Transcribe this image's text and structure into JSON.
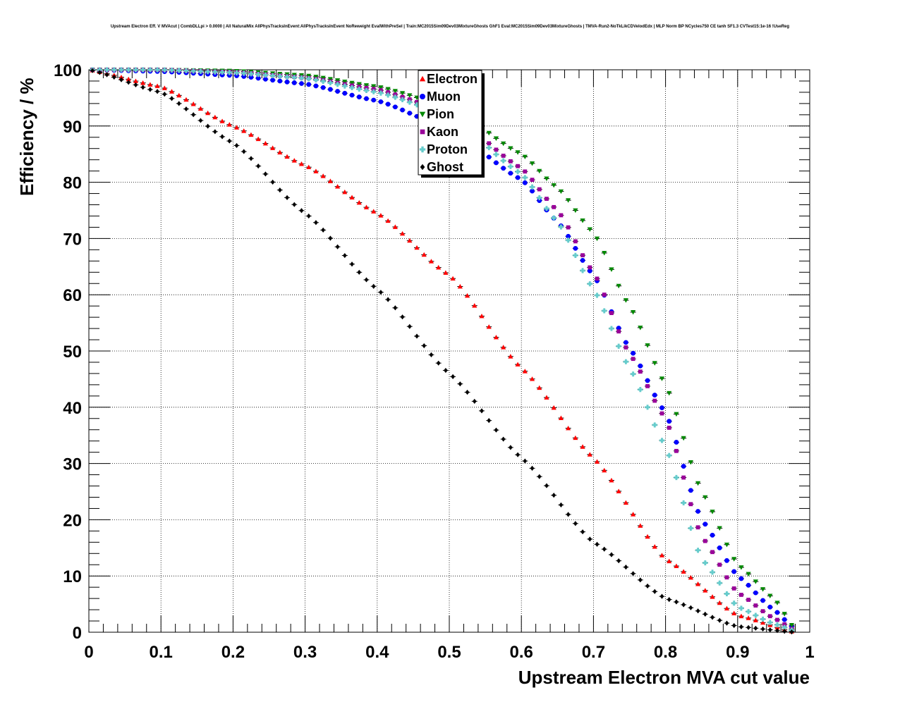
{
  "title": "Upstream Electron Eff. V MVAcut | CombDLLpi > 0.0000 | All NaturalMix AllPhysTracksInEvent:AllPhysTracksInEvent NoReweight EvalWithPreSel | Train:MC2015Sim09Dev03MixtureGhosts GhF1 Eval:MC2015Sim09Dev03MixtureGhosts | TMVA-Run2-NoTkLikCDVelodEdx | MLP Norm BP NCycles750 CE tanh SF1.3 CVTest15:1e-16 !UseReg",
  "chart_data": {
    "type": "scatter",
    "title": "Upstream Electron Eff. V MVAcut | CombDLLpi > 0.0000 | All NaturalMix AllPhysTracksInEvent:AllPhysTracksInEvent NoReweight EvalWithPreSel | Train:MC2015Sim09Dev03MixtureGhosts GhF1 Eval:MC2015Sim09Dev03MixtureGhosts | TMVA-Run2-NoTkLikCDVelodEdx | MLP Norm BP NCycles750 CE tanh SF1.3 CVTest15:1e-16 !UseReg",
    "xlabel": "Upstream Electron MVA cut value",
    "ylabel": "Efficiency / %",
    "xlim": [
      0,
      1
    ],
    "ylim": [
      0,
      100
    ],
    "x_step": 0.01,
    "x_ticks": [
      "0",
      "0.1",
      "0.2",
      "0.3",
      "0.4",
      "0.5",
      "0.6",
      "0.7",
      "0.8",
      "0.9",
      "1"
    ],
    "y_ticks": [
      "0",
      "10",
      "20",
      "30",
      "40",
      "50",
      "60",
      "70",
      "80",
      "90",
      "100"
    ],
    "grid": true,
    "legend_position": "top-center",
    "series": [
      {
        "name": "Electron",
        "color": "#ff0000",
        "marker": "triangle-up",
        "x_points": [
          0,
          0.1,
          0.2,
          0.3,
          0.4,
          0.5,
          0.6,
          0.7,
          0.8,
          0.9,
          0.98
        ],
        "y_points": [
          100,
          97,
          90,
          83,
          74.5,
          63.5,
          47,
          31,
          13,
          3,
          0
        ]
      },
      {
        "name": "Muon",
        "color": "#0000ff",
        "marker": "circle",
        "x_points": [
          0,
          0.1,
          0.2,
          0.3,
          0.4,
          0.5,
          0.6,
          0.65,
          0.7,
          0.75,
          0.8,
          0.85,
          0.9,
          0.95,
          0.98
        ],
        "y_points": [
          100,
          99.7,
          99,
          97.5,
          94.5,
          89.5,
          80.5,
          73,
          63.5,
          50.5,
          39,
          20,
          10,
          4,
          0.5
        ]
      },
      {
        "name": "Pion",
        "color": "#008800",
        "marker": "triangle-down",
        "x_points": [
          0,
          0.1,
          0.2,
          0.3,
          0.4,
          0.5,
          0.6,
          0.65,
          0.7,
          0.75,
          0.8,
          0.85,
          0.9,
          0.95,
          0.98
        ],
        "y_points": [
          100,
          100,
          99.8,
          99,
          97,
          93.5,
          85,
          79,
          71,
          58,
          44,
          25,
          12,
          6,
          0.5
        ]
      },
      {
        "name": "Kaon",
        "color": "#990099",
        "marker": "square",
        "x_points": [
          0,
          0.1,
          0.2,
          0.3,
          0.4,
          0.5,
          0.6,
          0.65,
          0.7,
          0.75,
          0.8,
          0.85,
          0.9,
          0.95,
          0.98
        ],
        "y_points": [
          100,
          100,
          99.6,
          98.6,
          96.5,
          92.5,
          82.5,
          75,
          64,
          49.5,
          38,
          17,
          7,
          2.5,
          0.3
        ]
      },
      {
        "name": "Proton",
        "color": "#66cccc",
        "marker": "cross",
        "x_points": [
          0,
          0.1,
          0.2,
          0.3,
          0.4,
          0.5,
          0.6,
          0.65,
          0.7,
          0.75,
          0.8,
          0.85,
          0.9,
          0.95,
          0.98
        ],
        "y_points": [
          100,
          100,
          99.5,
          98.5,
          96,
          92,
          81.5,
          73,
          61,
          47,
          33,
          13,
          4.5,
          1.5,
          0.2
        ]
      },
      {
        "name": "Ghost",
        "color": "#000000",
        "marker": "diamond",
        "x_points": [
          0,
          0.1,
          0.2,
          0.3,
          0.4,
          0.5,
          0.6,
          0.7,
          0.8,
          0.9,
          0.98
        ],
        "y_points": [
          100,
          96,
          87,
          74.5,
          61,
          46,
          31,
          16,
          6,
          1,
          0
        ]
      }
    ]
  }
}
